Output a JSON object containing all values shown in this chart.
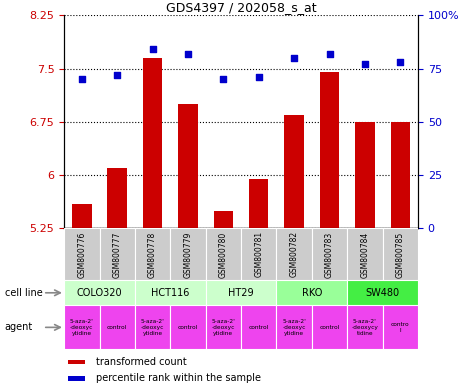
{
  "title": "GDS4397 / 202058_s_at",
  "samples": [
    "GSM800776",
    "GSM800777",
    "GSM800778",
    "GSM800779",
    "GSM800780",
    "GSM800781",
    "GSM800782",
    "GSM800783",
    "GSM800784",
    "GSM800785"
  ],
  "bar_values": [
    5.6,
    6.1,
    7.65,
    7.0,
    5.5,
    5.95,
    6.85,
    7.45,
    6.75,
    6.75
  ],
  "scatter_values": [
    70,
    72,
    84,
    82,
    70,
    71,
    80,
    82,
    77,
    78
  ],
  "ylim_left": [
    5.25,
    8.25
  ],
  "ylim_right": [
    0,
    100
  ],
  "yticks_left": [
    5.25,
    6.0,
    6.75,
    7.5,
    8.25
  ],
  "ytick_labels_left": [
    "5.25",
    "6",
    "6.75",
    "7.5",
    "8.25"
  ],
  "yticks_right": [
    0,
    25,
    50,
    75,
    100
  ],
  "ytick_labels_right": [
    "0",
    "25",
    "50",
    "75",
    "100%"
  ],
  "bar_color": "#cc0000",
  "scatter_color": "#0000cc",
  "cell_lines": [
    {
      "name": "COLO320",
      "start": 0,
      "end": 2,
      "color": "#ccffcc"
    },
    {
      "name": "HCT116",
      "start": 2,
      "end": 4,
      "color": "#ccffcc"
    },
    {
      "name": "HT29",
      "start": 4,
      "end": 6,
      "color": "#ccffcc"
    },
    {
      "name": "RKO",
      "start": 6,
      "end": 8,
      "color": "#99ff99"
    },
    {
      "name": "SW480",
      "start": 8,
      "end": 10,
      "color": "#44ee44"
    }
  ],
  "agents": [
    {
      "label": "5-aza-2'\n-deoxyc\nytidine",
      "color": "#ee44ee"
    },
    {
      "label": "control",
      "color": "#ee44ee"
    },
    {
      "label": "5-aza-2'\n-deoxyc\nytidine",
      "color": "#ee44ee"
    },
    {
      "label": "control",
      "color": "#ee44ee"
    },
    {
      "label": "5-aza-2'\n-deoxyc\nytidine",
      "color": "#ee44ee"
    },
    {
      "label": "control",
      "color": "#ee44ee"
    },
    {
      "label": "5-aza-2'\n-deoxyc\nytidine",
      "color": "#ee44ee"
    },
    {
      "label": "control",
      "color": "#ee44ee"
    },
    {
      "label": "5-aza-2'\n-deoxycy\ntidine",
      "color": "#ee44ee"
    },
    {
      "label": "contro\nl",
      "color": "#ee44ee"
    }
  ],
  "legend_bar_label": "transformed count",
  "legend_scatter_label": "percentile rank within the sample",
  "cell_line_label": "cell line",
  "agent_label": "agent",
  "hgrid_color": "#000000",
  "tick_label_color_left": "#cc0000",
  "tick_label_color_right": "#0000cc",
  "sample_bg": "#cccccc",
  "fig_bg": "#ffffff"
}
